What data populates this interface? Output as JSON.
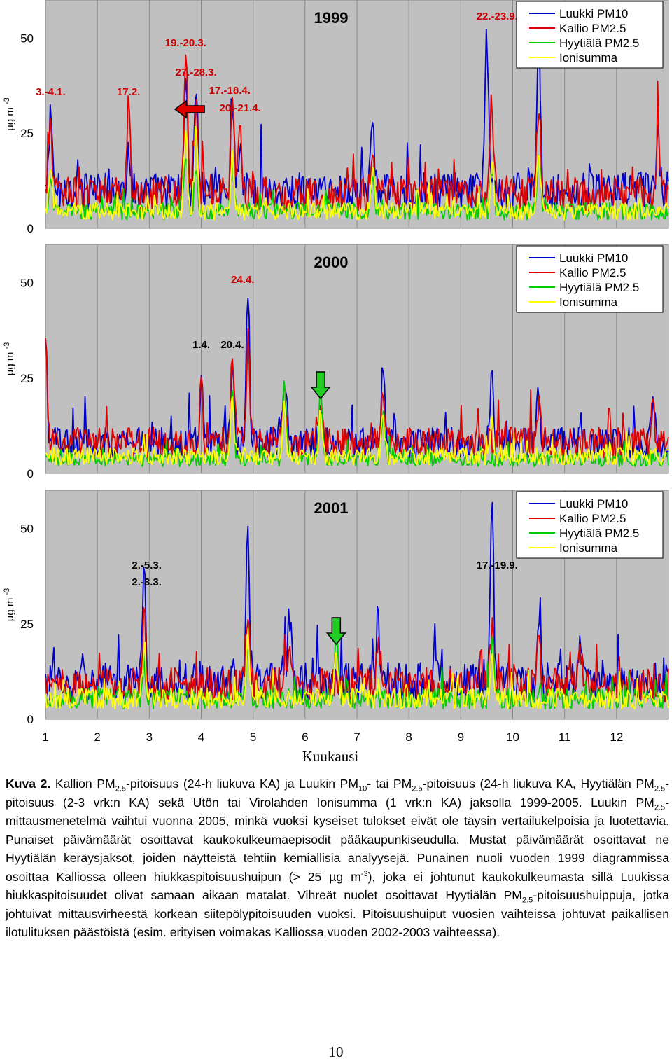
{
  "figure": {
    "y_unit": "µg m",
    "y_unit_exp": "-3",
    "x_title": "Kuukausi",
    "legend": [
      {
        "label": "Luukki PM10",
        "color": "#0000cc"
      },
      {
        "label": "Kallio PM2.5",
        "color": "#e00000"
      },
      {
        "label": "Hyytiälä PM2.5",
        "color": "#00cc00"
      },
      {
        "label": "Ionisumma",
        "color": "#ffff00"
      }
    ]
  },
  "chart_data": [
    {
      "type": "line",
      "year": "1999",
      "ylim": [
        0,
        60
      ],
      "yticks": [
        "0",
        "25",
        "50"
      ],
      "xticks": [
        "1",
        "2",
        "3",
        "4",
        "5",
        "6",
        "7",
        "8",
        "9",
        "10",
        "11",
        "12"
      ],
      "red_annotations": [
        {
          "text": "3.-4.1.",
          "month": 1.1
        },
        {
          "text": "17.2.",
          "month": 2.6
        },
        {
          "text": "19.-20.3.",
          "month": 3.7
        },
        {
          "text": "27.-28.3.",
          "month": 3.9
        },
        {
          "text": "17.-18.4.",
          "month": 4.55
        },
        {
          "text": "20.-21.4.",
          "month": 4.75
        },
        {
          "text": "22.-23.9.",
          "month": 9.7
        }
      ],
      "black_annotations": [],
      "arrows": [
        {
          "color": "red",
          "direction": "left",
          "month": 3.9
        }
      ],
      "series": [
        {
          "name": "Luukki PM10",
          "color": "#0000cc",
          "peaks": [
            [
              1.1,
              30
            ],
            [
              2.6,
              24
            ],
            [
              3.7,
              40
            ],
            [
              3.9,
              40
            ],
            [
              4.6,
              36
            ],
            [
              4.75,
              26
            ],
            [
              7.3,
              30
            ],
            [
              9.5,
              51
            ],
            [
              10.5,
              52
            ],
            [
              12.8,
              26
            ]
          ],
          "base": 11
        },
        {
          "name": "Kallio PM2.5",
          "color": "#e00000",
          "peaks": [
            [
              1.1,
              28
            ],
            [
              2.6,
              32
            ],
            [
              3.7,
              48
            ],
            [
              3.9,
              37
            ],
            [
              4.6,
              35
            ],
            [
              4.75,
              29
            ],
            [
              7.3,
              22
            ],
            [
              9.6,
              35
            ],
            [
              10.5,
              35
            ],
            [
              12.8,
              28
            ]
          ],
          "base": 10
        },
        {
          "name": "Hyytiälä PM2.5",
          "color": "#00cc00",
          "peaks": [
            [
              1.1,
              14
            ],
            [
              3.7,
              20
            ],
            [
              3.9,
              18
            ],
            [
              4.6,
              18
            ],
            [
              7.3,
              15
            ],
            [
              9.6,
              17
            ],
            [
              10.5,
              20
            ]
          ],
          "base": 5
        },
        {
          "name": "Ionisumma",
          "color": "#ffff00",
          "peaks": [
            [
              1.1,
              18
            ],
            [
              3.7,
              26
            ],
            [
              3.9,
              25
            ],
            [
              4.6,
              20
            ],
            [
              7.3,
              17
            ],
            [
              9.6,
              18
            ],
            [
              10.5,
              22
            ]
          ],
          "base": 5
        }
      ]
    },
    {
      "type": "line",
      "year": "2000",
      "ylim": [
        0,
        60
      ],
      "yticks": [
        "0",
        "25",
        "50"
      ],
      "xticks": [
        "1",
        "2",
        "3",
        "4",
        "5",
        "6",
        "7",
        "8",
        "9",
        "10",
        "11",
        "12"
      ],
      "red_annotations": [
        {
          "text": "24.4.",
          "month": 4.8
        }
      ],
      "black_annotations": [
        {
          "text": "1.4.",
          "month": 4.0
        },
        {
          "text": "20.4.",
          "month": 4.6
        }
      ],
      "arrows": [
        {
          "color": "green",
          "direction": "down",
          "month": 6.3
        }
      ],
      "series": [
        {
          "name": "Luukki PM10",
          "color": "#0000cc",
          "peaks": [
            [
              1.0,
              35
            ],
            [
              4.0,
              25
            ],
            [
              4.6,
              30
            ],
            [
              4.9,
              47
            ],
            [
              5.6,
              28
            ],
            [
              6.3,
              22
            ],
            [
              7.5,
              28
            ],
            [
              9.6,
              25
            ],
            [
              10.5,
              24
            ],
            [
              12.7,
              20
            ]
          ],
          "base": 9
        },
        {
          "name": "Kallio PM2.5",
          "color": "#e00000",
          "peaks": [
            [
              1.0,
              35
            ],
            [
              4.0,
              24
            ],
            [
              4.6,
              32
            ],
            [
              4.9,
              36
            ],
            [
              5.6,
              22
            ],
            [
              6.3,
              18
            ],
            [
              7.5,
              25
            ],
            [
              10.5,
              20
            ],
            [
              12.7,
              18
            ]
          ],
          "base": 9
        },
        {
          "name": "Hyytiälä PM2.5",
          "color": "#00cc00",
          "peaks": [
            [
              4.6,
              22
            ],
            [
              5.6,
              23
            ],
            [
              6.3,
              22
            ],
            [
              7.5,
              16
            ]
          ],
          "base": 4
        },
        {
          "name": "Ionisumma",
          "color": "#ffff00",
          "peaks": [
            [
              4.6,
              20
            ],
            [
              5.6,
              18
            ],
            [
              6.3,
              16
            ],
            [
              7.5,
              15
            ],
            [
              9.6,
              14
            ]
          ],
          "base": 5
        }
      ]
    },
    {
      "type": "line",
      "year": "2001",
      "ylim": [
        0,
        60
      ],
      "yticks": [
        "0",
        "25",
        "50"
      ],
      "xticks": [
        "1",
        "2",
        "3",
        "4",
        "5",
        "6",
        "7",
        "8",
        "9",
        "10",
        "11",
        "12"
      ],
      "red_annotations": [],
      "black_annotations": [
        {
          "text": "2.-5.3.",
          "month": 2.95
        },
        {
          "text": "2.-3.3.",
          "month": 2.95
        },
        {
          "text": "17.-19.9.",
          "month": 9.7
        }
      ],
      "arrows": [
        {
          "color": "green",
          "direction": "down",
          "month": 6.6
        }
      ],
      "series": [
        {
          "name": "Luukki PM10",
          "color": "#0000cc",
          "peaks": [
            [
              2.9,
              38
            ],
            [
              4.9,
              46
            ],
            [
              5.7,
              28
            ],
            [
              7.4,
              28
            ],
            [
              8.5,
              22
            ],
            [
              9.6,
              60
            ],
            [
              10.5,
              28
            ],
            [
              11.3,
              25
            ]
          ],
          "base": 11
        },
        {
          "name": "Kallio PM2.5",
          "color": "#e00000",
          "peaks": [
            [
              2.9,
              28
            ],
            [
              4.9,
              30
            ],
            [
              5.7,
              24
            ],
            [
              7.4,
              22
            ],
            [
              9.6,
              24
            ],
            [
              10.5,
              22
            ],
            [
              11.3,
              20
            ]
          ],
          "base": 10
        },
        {
          "name": "Hyytiälä PM2.5",
          "color": "#00cc00",
          "peaks": [
            [
              2.9,
              16
            ],
            [
              4.9,
              18
            ],
            [
              6.6,
              25
            ],
            [
              9.6,
              18
            ]
          ],
          "base": 6
        },
        {
          "name": "Ionisumma",
          "color": "#ffff00",
          "peaks": [
            [
              2.9,
              20
            ],
            [
              4.9,
              22
            ],
            [
              6.6,
              17
            ],
            [
              9.6,
              19
            ]
          ],
          "base": 6
        }
      ]
    }
  ],
  "caption": {
    "label": "Kuva 2.",
    "s1": " Kallion PM",
    "sub1": "2.5",
    "s2": "-pitoisuus (24-h liukuva KA) ja Luukin PM",
    "sub2": "10",
    "s3": "- tai PM",
    "sub3": "2.5",
    "s4": "-pitoisuus (24-h liukuva KA, Hyytiälän PM",
    "sub4": "2.5",
    "s5": "-pitoisuus (2-3 vrk:n KA) sekä Utön tai Virolahden Ionisumma (1 vrk:n KA) jaksolla 1999-2005. Luukin PM",
    "sub5": "2.5",
    "s6": "-mittausmenetelmä vaihtui vuonna 2005, minkä vuoksi kyseiset tulokset eivät ole täysin vertailukelpoisia ja luotettavia. Punaiset päivämäärät osoittavat kaukokulkeumaepisodit pääkaupunkiseudulla. Mustat päivämäärät osoittavat ne Hyytiälän keräysjaksot, joiden näytteistä tehtiin kemiallisia analyysejä. Punainen nuoli vuoden 1999 diagrammissa osoittaa Kalliossa olleen hiukkaspitoisuushuipun (> 25 µg m",
    "sup6": "-3",
    "s7": "), joka ei johtunut kaukokulkeumasta sillä Luukissa hiukkaspitoisuudet olivat samaan aikaan matalat. Vihreät nuolet osoittavat Hyytiälän PM",
    "sub7": "2.5",
    "s8": "-pitoisuushuippuja, jotka johtuivat mittausvirheestä korkean siitepölypitoisuuden vuoksi. Pitoisuushuiput vuosien vaihteissa johtuvat paikallisen ilotulituksen päästöistä (esim. erityisen voimakas Kalliossa vuoden 2002-2003 vaihteessa)."
  },
  "page_number": "10"
}
